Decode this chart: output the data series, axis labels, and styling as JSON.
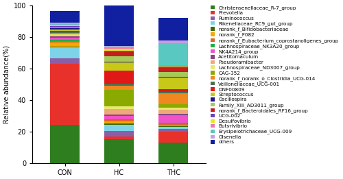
{
  "categories": [
    "CON",
    "HC",
    "THC"
  ],
  "labels": [
    "Christensenellaceae_R-7_group",
    "Prevotella",
    "Ruminococcus",
    "Rikenellaceae_RC9_gut_group",
    "norank_f__Bifidobacteriaceae",
    "norank_f__F082",
    "norank_f__Eubacterium_coprostanoligenes_group",
    "Lachnospiraceae_NK3A20_group",
    "NK4A214_group",
    "Acetitomaculum",
    "Pseudoramibacter",
    "Lachnospiraceae_ND3007_group",
    "CAG-352",
    "norank_f__norank_o__Clostridia_UCG-014",
    "Veillonellaceae_UCG-001",
    "DNF00809",
    "Streptococcus",
    "Oscillospira",
    "Family_XIII_AD3011_group",
    "norank_f__Bacteroidales_RF16_group",
    "UCG-002",
    "Desulfovibrio",
    "Butyrivibrio",
    "Erysipelotrichaceae_UCG-009",
    "Olsenella",
    "others"
  ],
  "colors": [
    "#2e7d1e",
    "#e8312a",
    "#8b5ea8",
    "#7dd4e8",
    "#3a6b00",
    "#f5a800",
    "#d4692a",
    "#2aaa4a",
    "#f050c8",
    "#884488",
    "#f0a878",
    "#e8e870",
    "#8aaa00",
    "#f08820",
    "#4a7050",
    "#e01818",
    "#c8c818",
    "#181888",
    "#a8c858",
    "#c02020",
    "#7040c0",
    "#e8e818",
    "#e878b8",
    "#58c8c0",
    "#c0a0e0",
    "#1020a0"
  ],
  "values": {
    "CON": [
      24.5,
      38.5,
      3.5,
      7.0,
      0.5,
      2.5,
      1.0,
      0.8,
      1.5,
      0.5,
      0.5,
      1.0,
      0.5,
      0.5,
      0.5,
      0.5,
      1.2,
      0.5,
      0.5,
      0.5,
      0.5,
      0.5,
      0.5,
      0.5,
      0.5,
      7.5
    ],
    "HC": [
      15.0,
      2.0,
      3.5,
      4.0,
      0.5,
      1.5,
      1.0,
      0.5,
      2.0,
      1.0,
      3.5,
      1.5,
      10.5,
      2.5,
      1.5,
      8.0,
      5.5,
      0.5,
      3.5,
      2.5,
      1.0,
      1.0,
      0.5,
      1.0,
      0.5,
      26.0
    ],
    "THC": [
      13.0,
      7.0,
      1.5,
      1.5,
      0.5,
      0.5,
      1.0,
      0.8,
      4.5,
      1.0,
      2.5,
      1.5,
      2.0,
      7.0,
      1.0,
      1.5,
      7.5,
      0.5,
      3.0,
      2.5,
      1.0,
      0.5,
      0.5,
      14.0,
      1.5,
      14.5
    ]
  },
  "ylabel": "Relative abundance(%)",
  "ylim": [
    0,
    100
  ],
  "yticks": [
    0,
    20,
    40,
    60,
    80,
    100
  ],
  "bar_width": 0.55,
  "legend_fontsize": 5.2,
  "axis_fontsize": 7,
  "tick_fontsize": 7
}
